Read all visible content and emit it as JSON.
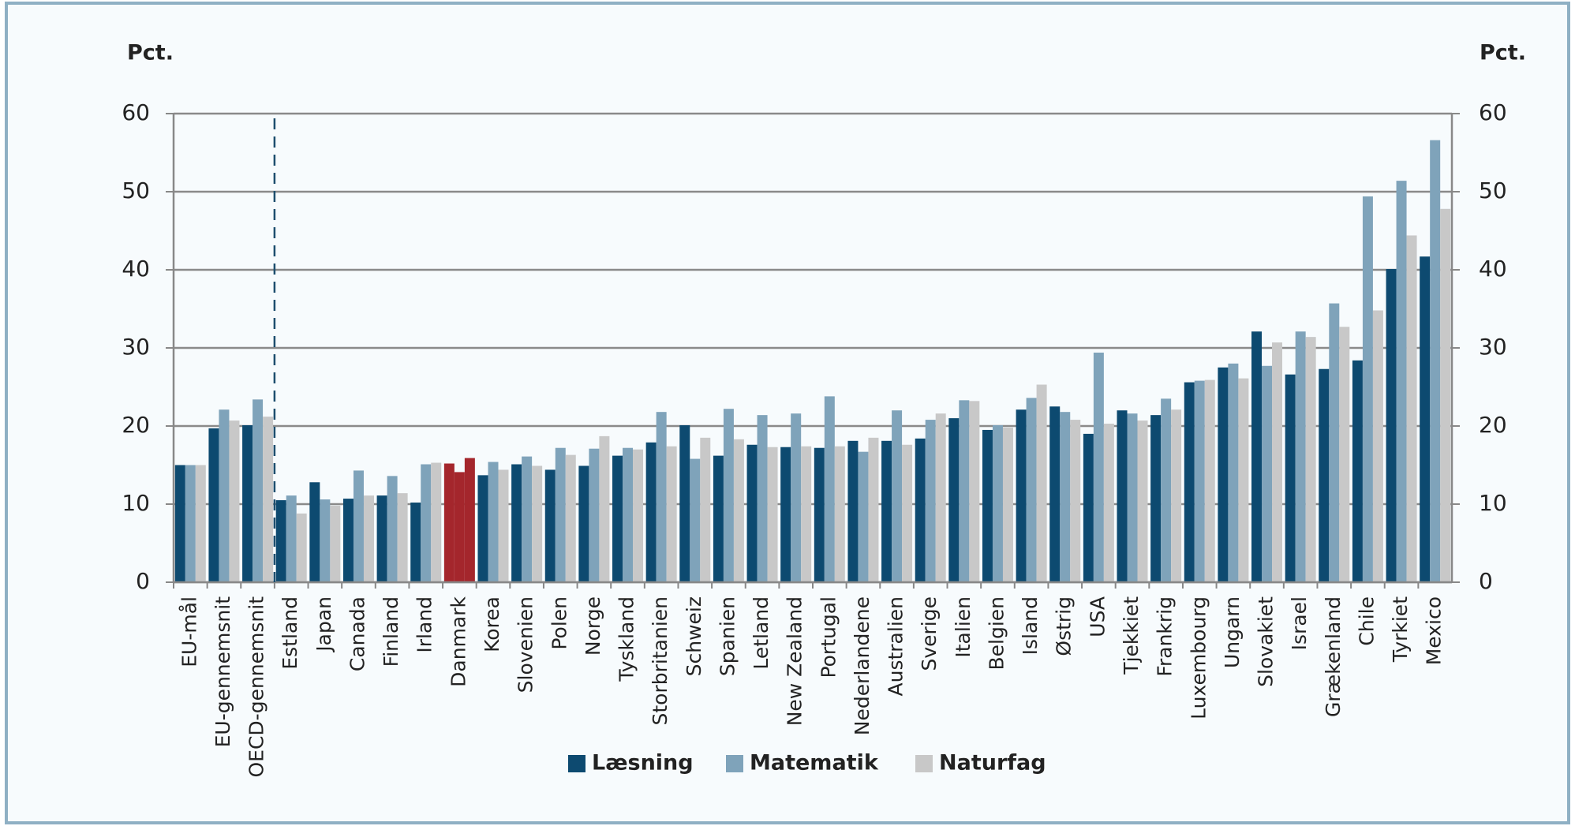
{
  "chart_data": {
    "type": "bar",
    "y_label": "Pct.",
    "y2_label": "Pct.",
    "categories": [
      "EU-mål",
      "EU-gennemsnit",
      "OECD-gennemsnit",
      "Estland",
      "Japan",
      "Canada",
      "Finland",
      "Irland",
      "Danmark",
      "Korea",
      "Slovenien",
      "Polen",
      "Norge",
      "Tyskland",
      "Storbritanien",
      "Schweiz",
      "Spanien",
      "Letland",
      "New Zealand",
      "Portugal",
      "Nederlandene",
      "Australien",
      "Sverige",
      "Italien",
      "Belgien",
      "Island",
      "Østrig",
      "USA",
      "Tjekkiet",
      "Frankrig",
      "Luxembourg",
      "Ungarn",
      "Slovakiet",
      "Israel",
      "Grækenland",
      "Chile",
      "Tyrkiet",
      "Mexico"
    ],
    "series": [
      {
        "name": "Læsning",
        "color": "#0d4a70",
        "values": [
          15,
          19.7,
          20.1,
          10.5,
          12.8,
          10.7,
          11.1,
          10.2,
          15.2,
          13.7,
          15.1,
          14.4,
          14.9,
          16.2,
          17.9,
          20.1,
          16.2,
          17.6,
          17.3,
          17.2,
          18.1,
          18.1,
          18.4,
          21.0,
          19.5,
          22.1,
          22.5,
          19.0,
          22.0,
          21.4,
          25.6,
          27.5,
          32.1,
          26.6,
          27.3,
          28.4,
          40.1,
          41.7
        ]
      },
      {
        "name": "Matematik",
        "color": "#7fa3ba",
        "values": [
          15,
          22.1,
          23.4,
          11.1,
          10.6,
          14.3,
          13.6,
          15.1,
          14.1,
          15.4,
          16.1,
          17.2,
          17.1,
          17.2,
          21.8,
          15.8,
          22.2,
          21.4,
          21.6,
          23.8,
          16.7,
          22.0,
          20.8,
          23.3,
          20.1,
          23.6,
          21.8,
          29.4,
          21.6,
          23.5,
          25.8,
          28.0,
          27.7,
          32.1,
          35.7,
          49.4,
          51.4,
          56.6
        ]
      },
      {
        "name": "Naturfag",
        "color": "#c8c8c8",
        "values": [
          15,
          20.7,
          21.2,
          8.8,
          9.8,
          11.1,
          11.4,
          15.3,
          15.9,
          14.4,
          14.9,
          16.3,
          18.7,
          17.0,
          17.4,
          18.5,
          18.3,
          17.3,
          17.4,
          17.4,
          18.5,
          17.6,
          21.6,
          23.2,
          19.8,
          25.3,
          20.8,
          20.3,
          20.7,
          22.1,
          25.9,
          26.1,
          30.7,
          31.4,
          32.7,
          34.8,
          44.4,
          47.8
        ]
      }
    ],
    "highlight": {
      "index": 8,
      "color": "#a4262c"
    },
    "ylim": [
      0,
      60
    ],
    "yticks": [
      0,
      10,
      20,
      30,
      40,
      50,
      60
    ],
    "y2lim": [
      0,
      60
    ],
    "y2ticks": [
      0,
      10,
      20,
      30,
      40,
      50,
      60
    ],
    "grid": true
  }
}
